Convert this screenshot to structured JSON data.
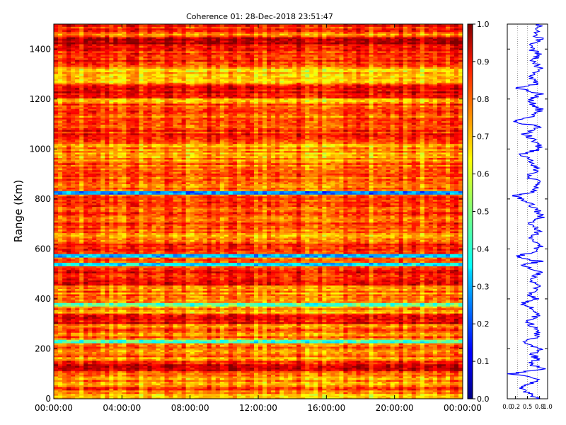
{
  "title": "Coherence 01: 28-Dec-2018 23:51:47",
  "chart_data": [
    {
      "type": "heatmap",
      "title": "Coherence 01: 28-Dec-2018 23:51:47",
      "xlabel": "",
      "ylabel": "Range (Km)",
      "x_ticks": [
        "00:00:00",
        "04:00:00",
        "08:00:00",
        "12:00:00",
        "16:00:00",
        "20:00:00",
        "00:00:00"
      ],
      "x_range_hours": [
        0,
        24
      ],
      "y_ticks": [
        0,
        200,
        400,
        600,
        800,
        1000,
        1200,
        1400
      ],
      "ylim": [
        0,
        1500
      ],
      "colormap": "jet",
      "color_range": [
        0.0,
        1.0
      ],
      "colorbar_ticks": [
        "0.0",
        "0.1",
        "0.2",
        "0.3",
        "0.4",
        "0.5",
        "0.6",
        "0.7",
        "0.8",
        "0.9",
        "1.0"
      ],
      "range_band_means": [
        {
          "range_km": [
            0,
            30
          ],
          "coherence": 0.72
        },
        {
          "range_km": [
            30,
            50
          ],
          "coherence": 0.8
        },
        {
          "range_km": [
            50,
            110
          ],
          "coherence": 0.75
        },
        {
          "range_km": [
            110,
            150
          ],
          "coherence": 0.88
        },
        {
          "range_km": [
            150,
            222
          ],
          "coherence": 0.74
        },
        {
          "range_km": [
            222,
            235
          ],
          "coherence": 0.42
        },
        {
          "range_km": [
            235,
            300
          ],
          "coherence": 0.76
        },
        {
          "range_km": [
            300,
            340
          ],
          "coherence": 0.88
        },
        {
          "range_km": [
            340,
            370
          ],
          "coherence": 0.72
        },
        {
          "range_km": [
            370,
            385
          ],
          "coherence": 0.5
        },
        {
          "range_km": [
            385,
            455
          ],
          "coherence": 0.75
        },
        {
          "range_km": [
            455,
            520
          ],
          "coherence": 0.85
        },
        {
          "range_km": [
            520,
            532
          ],
          "coherence": 0.78
        },
        {
          "range_km": [
            532,
            545
          ],
          "coherence": 0.3
        },
        {
          "range_km": [
            545,
            562
          ],
          "coherence": 0.8
        },
        {
          "range_km": [
            562,
            575
          ],
          "coherence": 0.32
        },
        {
          "range_km": [
            575,
            620
          ],
          "coherence": 0.82
        },
        {
          "range_km": [
            620,
            660
          ],
          "coherence": 0.73
        },
        {
          "range_km": [
            660,
            815
          ],
          "coherence": 0.8
        },
        {
          "range_km": [
            815,
            830
          ],
          "coherence": 0.25
        },
        {
          "range_km": [
            830,
            950
          ],
          "coherence": 0.78
        },
        {
          "range_km": [
            950,
            1020
          ],
          "coherence": 0.72
        },
        {
          "range_km": [
            1020,
            1100
          ],
          "coherence": 0.84
        },
        {
          "range_km": [
            1100,
            1180
          ],
          "coherence": 0.78
        },
        {
          "range_km": [
            1180,
            1200
          ],
          "coherence": 0.68
        },
        {
          "range_km": [
            1200,
            1260
          ],
          "coherence": 0.9
        },
        {
          "range_km": [
            1260,
            1330
          ],
          "coherence": 0.7
        },
        {
          "range_km": [
            1330,
            1420
          ],
          "coherence": 0.82
        },
        {
          "range_km": [
            1420,
            1445
          ],
          "coherence": 0.92
        },
        {
          "range_km": [
            1445,
            1470
          ],
          "coherence": 0.75
        },
        {
          "range_km": [
            1470,
            1500
          ],
          "coherence": 0.85
        }
      ]
    },
    {
      "type": "line",
      "title": "",
      "xlabel": "",
      "ylabel": "",
      "x_ticks": [
        "0.0",
        "0.2",
        "0.5",
        "0.8",
        "1.0"
      ],
      "xlim": [
        0.0,
        1.0
      ],
      "ylim": [
        0,
        1500
      ],
      "series": [
        {
          "color": "#0000ff",
          "points": [
            [
              0.75,
              0
            ],
            [
              0.6,
              20
            ],
            [
              0.3,
              40
            ],
            [
              0.55,
              60
            ],
            [
              0.8,
              80
            ],
            [
              0.1,
              100
            ],
            [
              0.85,
              120
            ],
            [
              0.55,
              140
            ],
            [
              0.75,
              160
            ],
            [
              0.6,
              180
            ],
            [
              0.8,
              200
            ],
            [
              0.45,
              225
            ],
            [
              0.78,
              250
            ],
            [
              0.7,
              280
            ],
            [
              0.5,
              310
            ],
            [
              0.8,
              340
            ],
            [
              0.65,
              360
            ],
            [
              0.35,
              380
            ],
            [
              0.75,
              400
            ],
            [
              0.55,
              420
            ],
            [
              0.8,
              450
            ],
            [
              0.6,
              480
            ],
            [
              0.8,
              510
            ],
            [
              0.4,
              535
            ],
            [
              0.8,
              550
            ],
            [
              0.25,
              570
            ],
            [
              0.7,
              590
            ],
            [
              0.8,
              610
            ],
            [
              0.55,
              640
            ],
            [
              0.75,
              670
            ],
            [
              0.6,
              700
            ],
            [
              0.85,
              730
            ],
            [
              0.7,
              760
            ],
            [
              0.5,
              790
            ],
            [
              0.2,
              815
            ],
            [
              0.65,
              830
            ],
            [
              0.8,
              860
            ],
            [
              0.55,
              890
            ],
            [
              0.75,
              920
            ],
            [
              0.6,
              950
            ],
            [
              0.35,
              980
            ],
            [
              0.8,
              1000
            ],
            [
              0.7,
              1030
            ],
            [
              0.45,
              1060
            ],
            [
              0.8,
              1090
            ],
            [
              0.05,
              1110
            ],
            [
              0.7,
              1130
            ],
            [
              0.8,
              1160
            ],
            [
              0.55,
              1190
            ],
            [
              0.8,
              1220
            ],
            [
              0.2,
              1245
            ],
            [
              0.75,
              1260
            ],
            [
              0.6,
              1290
            ],
            [
              0.8,
              1320
            ],
            [
              0.65,
              1350
            ],
            [
              0.75,
              1380
            ],
            [
              0.55,
              1410
            ],
            [
              0.8,
              1440
            ],
            [
              0.7,
              1470
            ],
            [
              0.8,
              1500
            ]
          ]
        }
      ]
    }
  ]
}
